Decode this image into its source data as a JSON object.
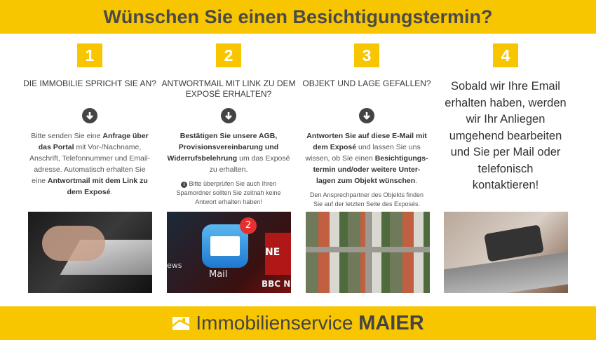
{
  "header": {
    "title": "Wünschen Sie einen Besichtigungstermin?"
  },
  "colors": {
    "accent": "#f8c600",
    "text": "#4a4a4a"
  },
  "steps": [
    {
      "number": "1",
      "title": "DIE IMMOBILIE SPRICHT SIE AN?",
      "icon": "arrow-down-circle-icon",
      "text": [
        "Bitte senden Sie eine ",
        "Anfrage über das Portal",
        " mit Vor-/Nachname, Anschrift, Telefonnummer und Email-adresse. Automatisch erhalten Sie eine ",
        "Antwortmail mit dem Link zu dem Exposé",
        "."
      ]
    },
    {
      "number": "2",
      "title": "ANTWORTMAIL MIT LINK ZU DEM EXPOSÉ ERHALTEN?",
      "icon": "arrow-down-circle-icon",
      "text": [
        "Bestätigen Sie unsere AGB, Provisionsvereinbarung und Widerrufsbelehrung",
        " um das Exposé zu erhalten."
      ],
      "note": "Bitte überprüfen Sie auch Ihren Spamordner sollten Sie zeitnah keine Antwort erhalten haben!",
      "note_icon": "info-icon"
    },
    {
      "number": "3",
      "title": "OBJEKT UND LAGE GEFALLEN?",
      "icon": "arrow-down-circle-icon",
      "text": [
        "Antworten Sie auf diese E-Mail mit dem Exposé",
        " und lassen Sie uns wissen, ob Sie einen ",
        "Besichtigungs-termin und/oder weitere Unter-lagen zum Objekt wünschen",
        "."
      ],
      "note": "Den Ansprechpartner des Objekts finden Sie auf der letzten Seite des Exposés."
    },
    {
      "number": "4",
      "text": "Sobald wir Ihre Email erhalten haben, werden wir Ihr Anliegen umgehend bearbeiten und Sie per Mail oder telefonisch kontaktieren!"
    }
  ],
  "images": {
    "phone_apps": {
      "badge": "2",
      "mail_label": "Mail",
      "news_label": "ews",
      "bbc_label": "BBC N",
      "bbc_tile": "NE"
    }
  },
  "footer": {
    "brand_light": "Immobilienservice",
    "brand_bold": "MAIER"
  }
}
